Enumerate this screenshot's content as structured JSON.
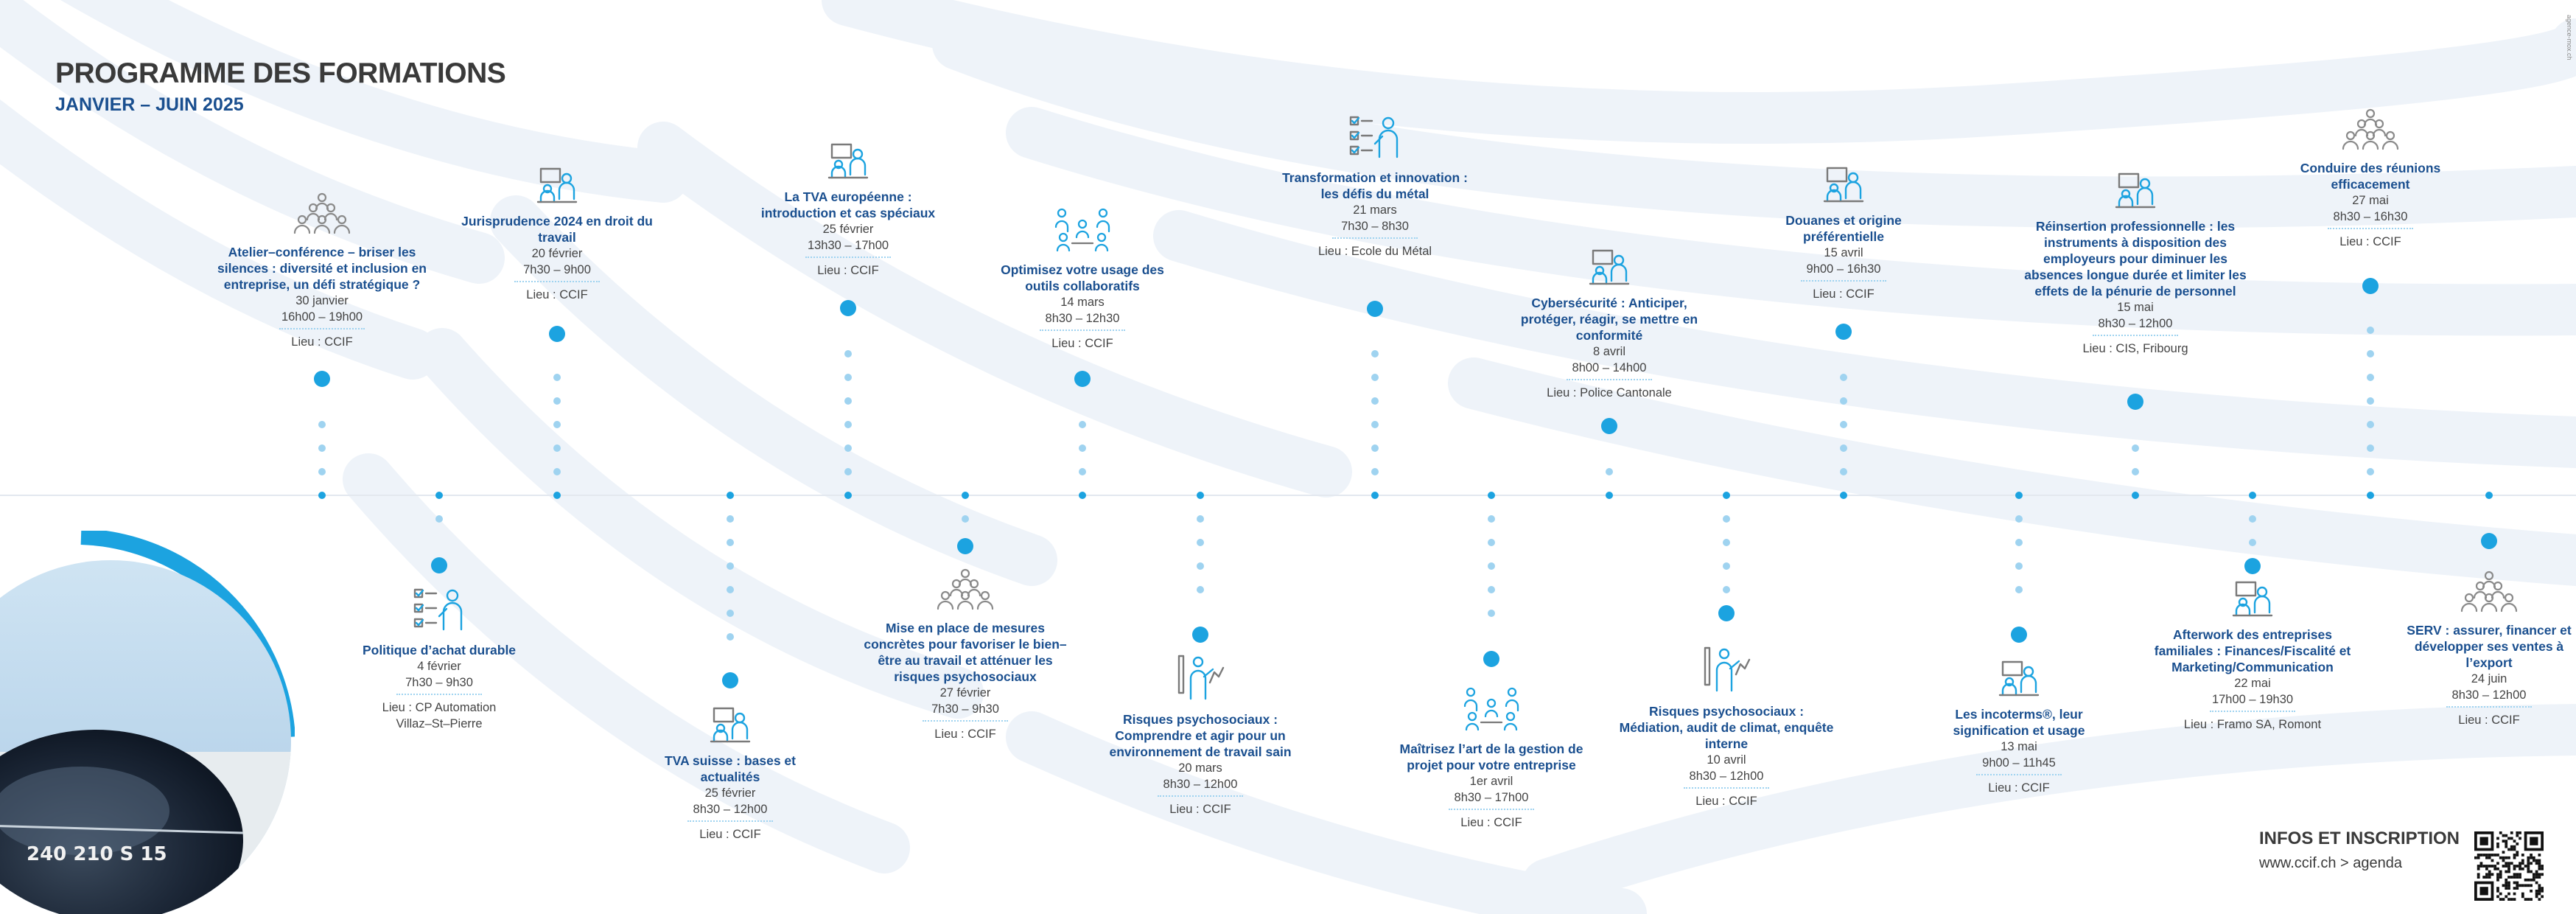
{
  "header": {
    "title": "PROGRAMME DES FORMATIONS",
    "subtitle": "JANVIER – JUIN 2025",
    "vertical_credit": "agence-mox.ch"
  },
  "colors": {
    "accent": "#1ca3e0",
    "title_blue": "#1a4f8f",
    "dots_light": "#9fd3f0",
    "text_grey": "#3a3a3a"
  },
  "events": [
    {
      "side": "top",
      "icon": "group-icon",
      "title": "Atelier–conférence – briser les silences : diversité et inclusion en entreprise, un défi stratégique ?",
      "date": "30 janvier",
      "time": "16h00 – 19h00",
      "location": "Lieu : CCIF"
    },
    {
      "side": "bottom",
      "icon": "checklist-icon",
      "title": "Politique d’achat durable",
      "date": "4 février",
      "time": "7h30 – 9h30",
      "location": "Lieu : CP Automation\nVillaz–St–Pierre"
    },
    {
      "side": "top",
      "icon": "presenter-icon",
      "title": "Jurisprudence 2024 en droit du travail",
      "date": "20 février",
      "time": "7h30 – 9h00",
      "location": "Lieu : CCIF"
    },
    {
      "side": "bottom",
      "icon": "presenter-icon",
      "title": "TVA suisse : bases et actualités",
      "date": "25 février",
      "time": "8h30 – 12h00",
      "location": "Lieu : CCIF"
    },
    {
      "side": "top",
      "icon": "presenter-icon",
      "title": "La TVA européenne : introduction et cas spéciaux",
      "date": "25 février",
      "time": "13h30 – 17h00",
      "location": "Lieu : CCIF"
    },
    {
      "side": "bottom",
      "icon": "group-icon",
      "title": "Mise en place de mesures concrètes pour favoriser le bien–être au travail et atténuer les risques psychosociaux",
      "date": "27 février",
      "time": "7h30 – 9h30",
      "location": "Lieu : CCIF"
    },
    {
      "side": "top",
      "icon": "team-icon",
      "title": "Optimisez votre usage des outils collaboratifs",
      "date": "14 mars",
      "time": "8h30 – 12h30",
      "location": "Lieu : CCIF"
    },
    {
      "side": "bottom",
      "icon": "coach-icon",
      "title": "Risques psychosociaux : Comprendre et agir pour un environnement de travail sain",
      "date": "20 mars",
      "time": "8h30 – 12h00",
      "location": "Lieu : CCIF"
    },
    {
      "side": "top",
      "icon": "checklist-icon",
      "title": "Transformation et innovation : les défis du métal",
      "date": "21 mars",
      "time": "7h30 – 8h30",
      "location": "Lieu : Ecole du Métal"
    },
    {
      "side": "bottom",
      "icon": "team-icon",
      "title": "Maîtrisez l’art de la gestion de projet pour votre entreprise",
      "date": "1er avril",
      "time": "8h30 – 17h00",
      "location": "Lieu : CCIF"
    },
    {
      "side": "top",
      "icon": "presenter-icon",
      "title": "Cybersécurité : Anticiper, protéger, réagir, se mettre en conformité",
      "date": "8 avril",
      "time": "8h00 – 14h00",
      "location": "Lieu : Police Cantonale"
    },
    {
      "side": "bottom",
      "icon": "coach-icon",
      "title": "Risques psychosociaux : Médiation, audit de climat, enquête interne",
      "date": "10 avril",
      "time": "8h30 – 12h00",
      "location": "Lieu : CCIF"
    },
    {
      "side": "top",
      "icon": "presenter-icon",
      "title": "Douanes et origine préférentielle",
      "date": "15 avril",
      "time": "9h00 – 16h30",
      "location": "Lieu : CCIF"
    },
    {
      "side": "bottom",
      "icon": "presenter-icon",
      "title": "Les incoterms®, leur signification et usage",
      "date": "13 mai",
      "time": "9h00 – 11h45",
      "location": "Lieu : CCIF"
    },
    {
      "side": "top",
      "icon": "presenter-icon",
      "title": "Réinsertion professionnelle : les instruments à disposition des employeurs pour diminuer les absences longue durée et limiter les effets de la pénurie de personnel",
      "date": "15 mai",
      "time": "8h30 – 12h00",
      "location": "Lieu : CIS, Fribourg"
    },
    {
      "side": "bottom",
      "icon": "presenter-icon",
      "title": "Afterwork des entreprises familiales : Finances/Fiscalité et Marketing/Communication",
      "date": "22 mai",
      "time": "17h00 – 19h30",
      "location": "Lieu : Framo SA, Romont"
    },
    {
      "side": "top",
      "icon": "group-icon",
      "title": "Conduire des réunions efficacement",
      "date": "27 mai",
      "time": "8h30 – 16h30",
      "location": "Lieu : CCIF"
    },
    {
      "side": "bottom",
      "icon": "group-icon",
      "title": "SERV : assurer, financer et développer ses ventes à l’export",
      "date": "24 juin",
      "time": "8h30 – 12h00",
      "location": "Lieu : CCIF"
    }
  ],
  "info": {
    "heading": "INFOS ET INSCRIPTION",
    "url": "www.ccif.ch > agenda"
  },
  "compass": {
    "readout": "240 210 S 15"
  }
}
